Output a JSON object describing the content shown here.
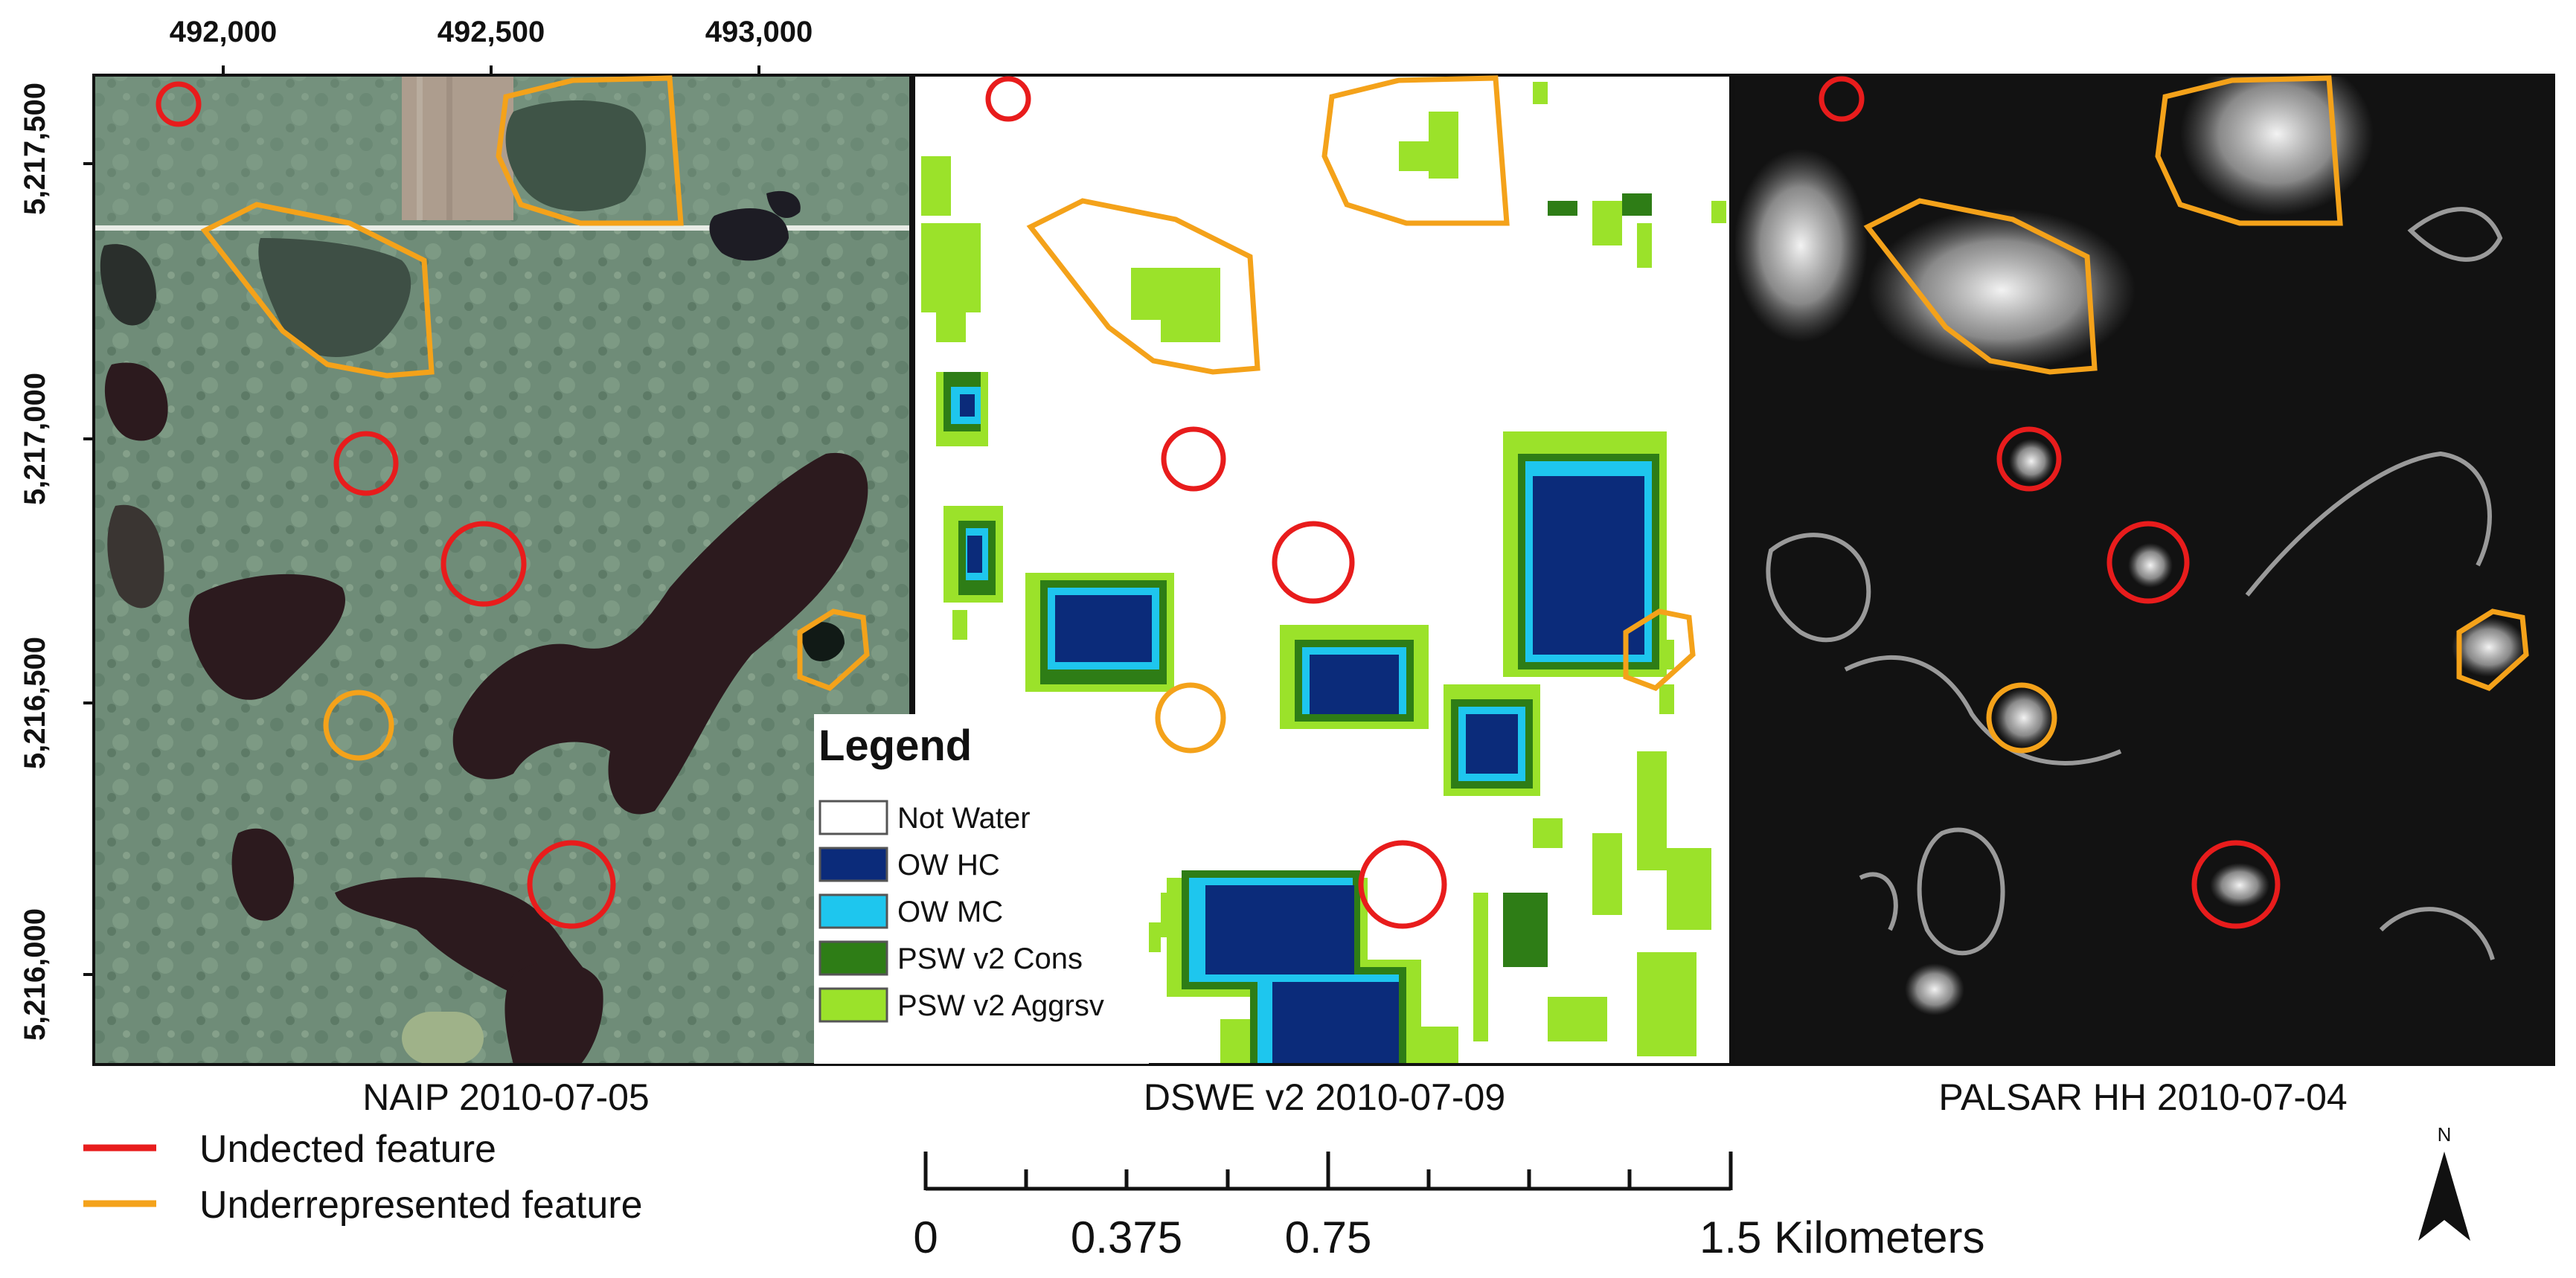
{
  "axes": {
    "x_ticks": [
      "492,000",
      "492,500",
      "493,000"
    ],
    "y_ticks": [
      "5,217,500",
      "5,217,000",
      "5,216,500",
      "5,216,000"
    ]
  },
  "panels": [
    {
      "id": "naip",
      "caption": "NAIP 2010-07-05"
    },
    {
      "id": "dswe",
      "caption": "DSWE v2 2010-07-09"
    },
    {
      "id": "palsar",
      "caption": "PALSAR HH 2010-07-04"
    }
  ],
  "legend": {
    "title": "Legend",
    "items": [
      {
        "label": "Not Water",
        "color": "#ffffff"
      },
      {
        "label": "OW HC",
        "color": "#0b2b7a"
      },
      {
        "label": "OW MC",
        "color": "#1ec6ee"
      },
      {
        "label": "PSW v2 Cons",
        "color": "#2e7d16"
      },
      {
        "label": "PSW v2 Aggrsv",
        "color": "#9be22a"
      }
    ]
  },
  "feature_key": [
    {
      "label": "Undected feature",
      "color": "#e81c1c"
    },
    {
      "label": "Underrepresented feature",
      "color": "#f4a21a"
    }
  ],
  "scale_bar": {
    "labels": [
      "0",
      "0.375",
      "0.75",
      "1.5 Kilometers"
    ]
  },
  "north_arrow": {
    "label": "N"
  }
}
